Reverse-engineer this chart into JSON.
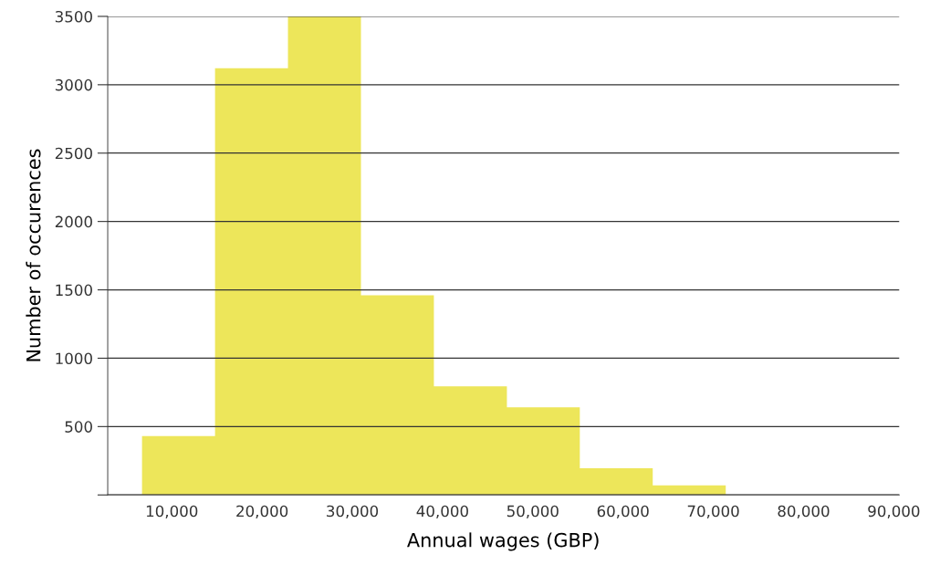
{
  "chart_data": {
    "type": "histogram",
    "xlabel": "Annual wages (GBP)",
    "ylabel": "Number of occurences",
    "bins": [
      6700,
      14790,
      22870,
      30960,
      39040,
      47130,
      55210,
      63290,
      71380
    ],
    "values": [
      430,
      3120,
      3500,
      1460,
      795,
      640,
      195,
      70
    ],
    "color": "#ede65a",
    "xlim": [
      2900,
      90600
    ],
    "xticks": [
      {
        "value": 10000,
        "label": "10,000"
      },
      {
        "value": 20000,
        "label": "20,000"
      },
      {
        "value": 30000,
        "label": "30,000"
      },
      {
        "value": 40000,
        "label": "40,000"
      },
      {
        "value": 50000,
        "label": "50,000"
      },
      {
        "value": 60000,
        "label": "60,000"
      },
      {
        "value": 70000,
        "label": "70,000"
      },
      {
        "value": 80000,
        "label": "80,000"
      },
      {
        "value": 90000,
        "label": "90,000"
      }
    ],
    "ylim": [
      0,
      3500
    ],
    "yticks": [
      {
        "value": 0,
        "label": null
      },
      500,
      1000,
      1500,
      2000,
      2500,
      3000,
      3500
    ],
    "grid": "y"
  }
}
